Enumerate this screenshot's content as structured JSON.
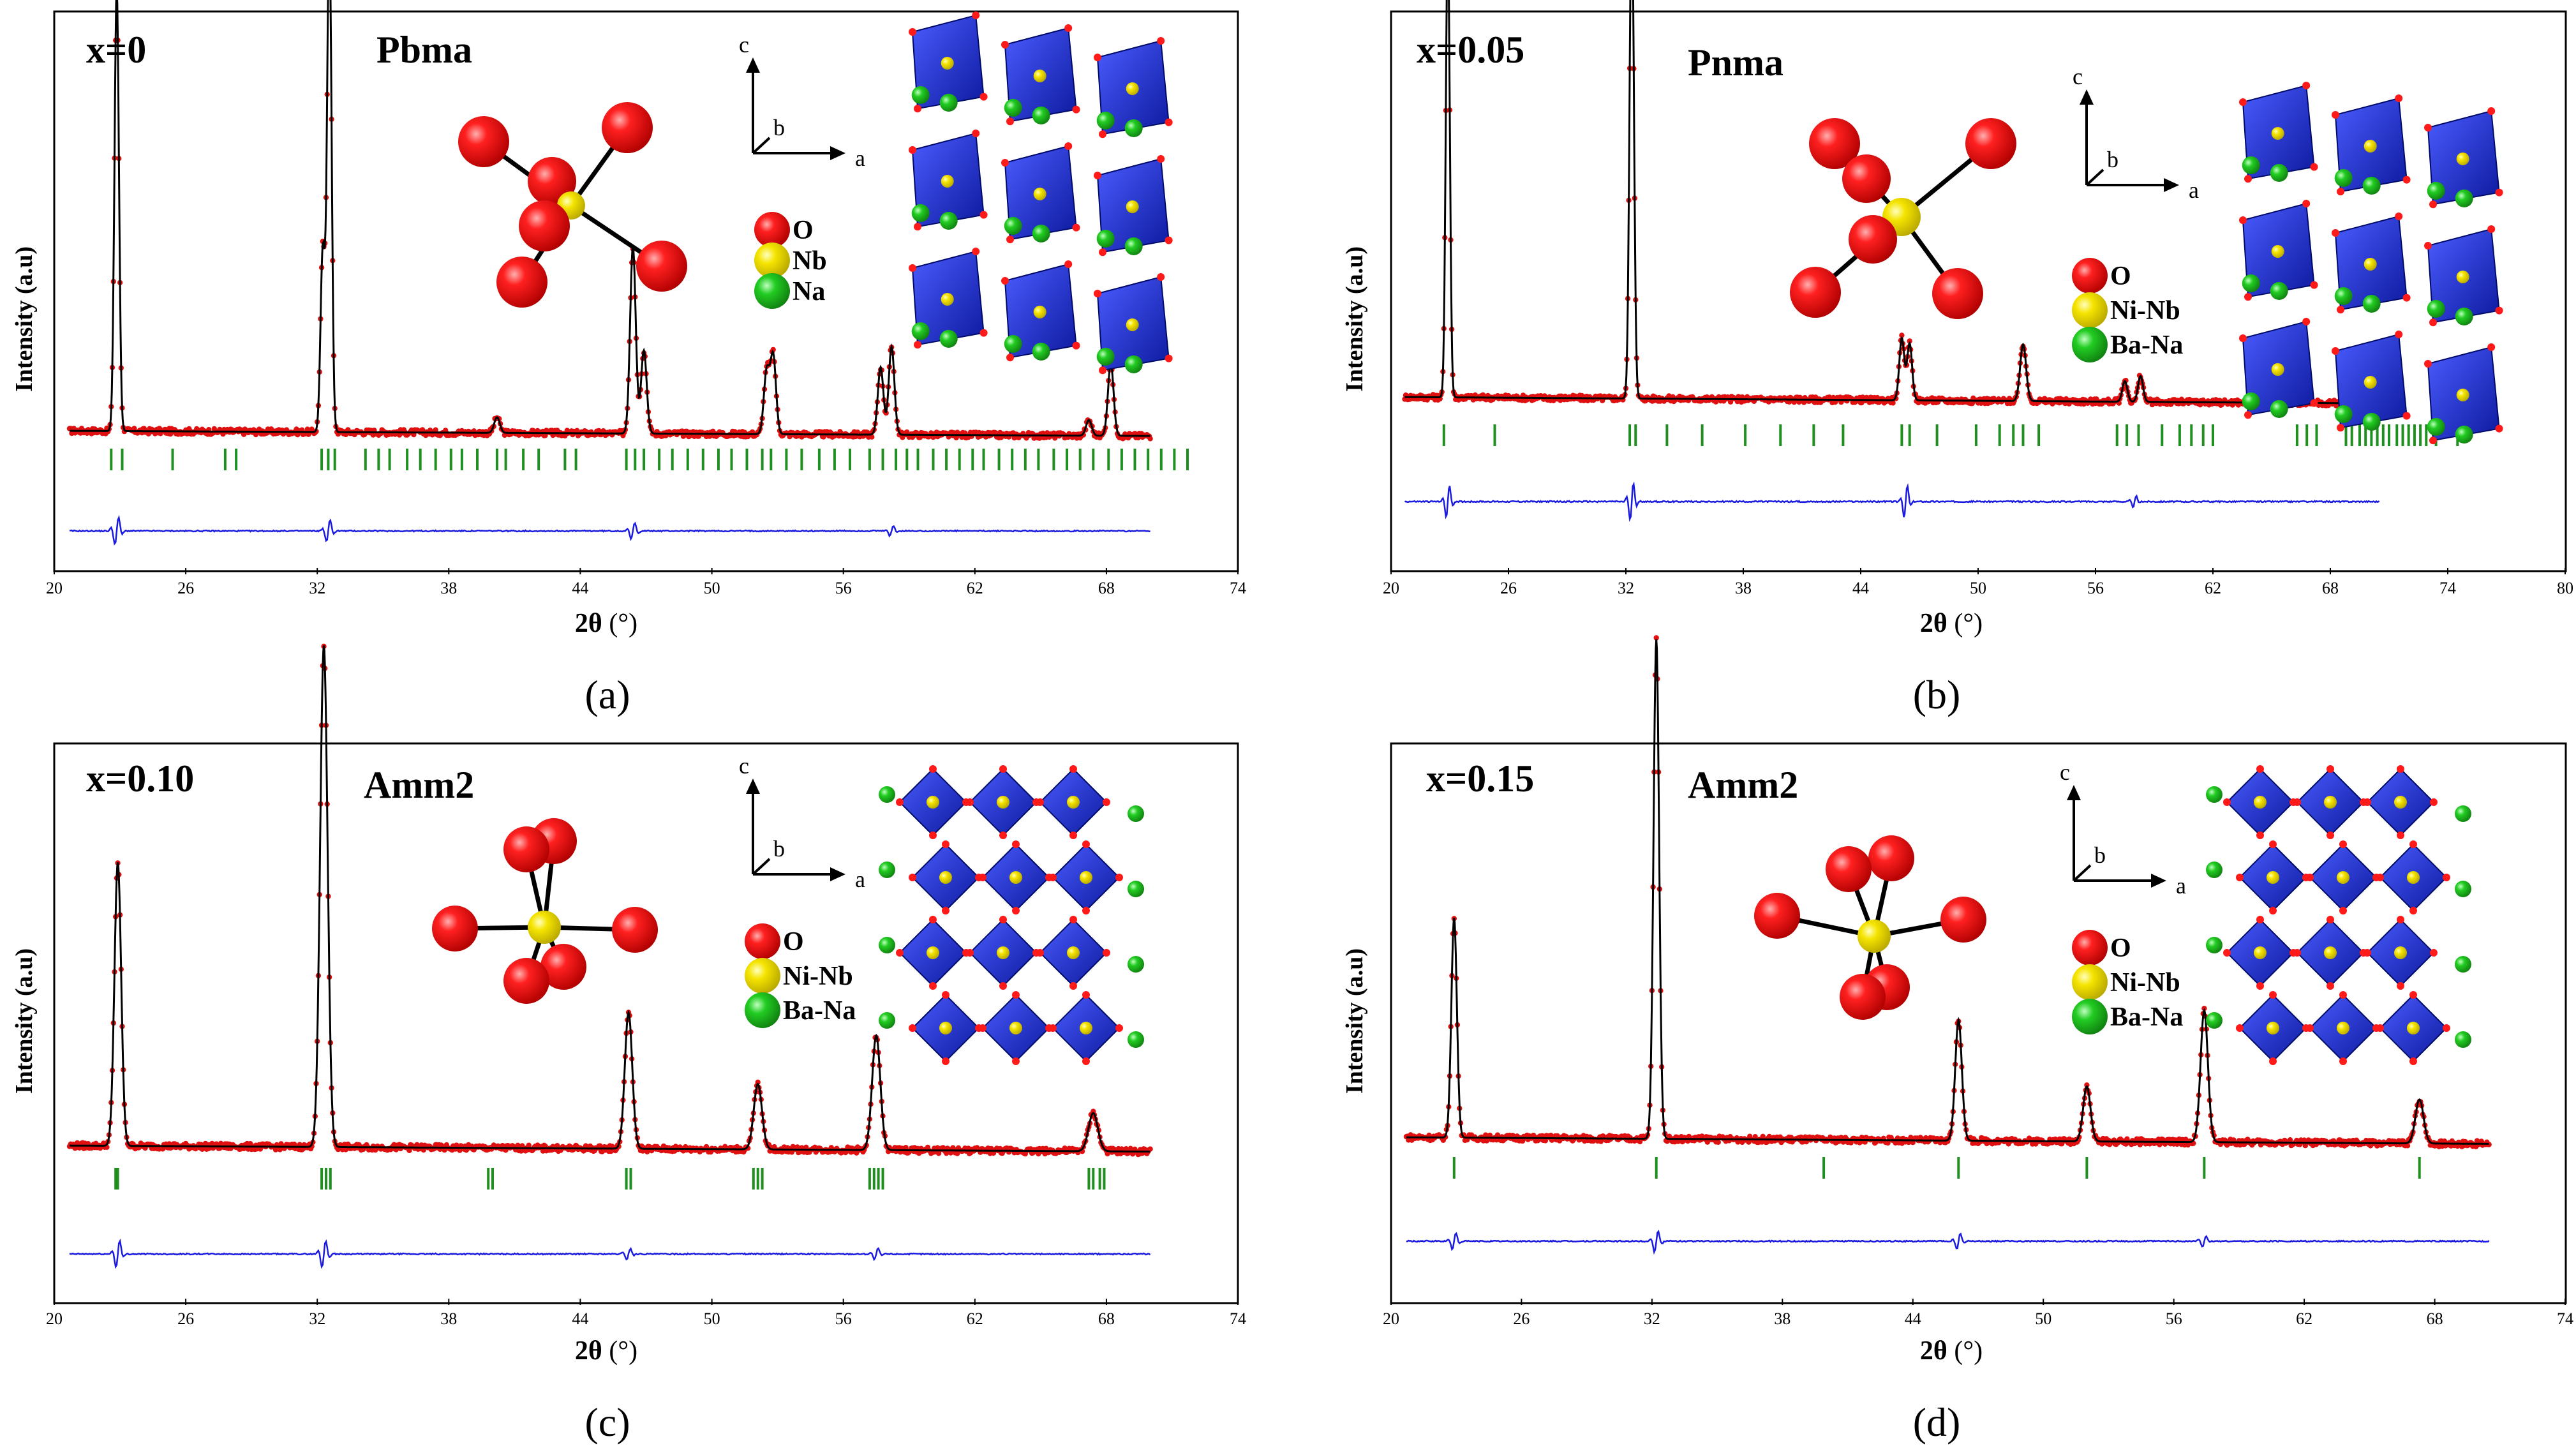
{
  "figure": {
    "colors": {
      "observed": "#e01010",
      "calculated": "#000000",
      "difference": "#1a1ae0",
      "bragg": "#1f8f1f",
      "oxygen": "#ff1a1a",
      "cation": "#f5e400",
      "site": "#22cc22",
      "octahedron": "#1a2bd6"
    },
    "legend_icons": [
      "oxygen-sphere-icon",
      "cation-sphere-icon",
      "a-site-sphere-icon"
    ]
  },
  "chart_data": [
    {
      "type": "line",
      "panel": "a",
      "caption": "(a)",
      "composition": "x=0",
      "space_group": "Pbma",
      "ylabel": "Intensity (a.u)",
      "xlabel_main": "2θ",
      "xlabel_unit": "(°)",
      "xlim": [
        20,
        74
      ],
      "ylim": [
        0,
        100
      ],
      "xticks": [
        "20",
        "26",
        "32",
        "38",
        "44",
        "50",
        "56",
        "62",
        "68",
        "74"
      ],
      "pattern_end": 70,
      "bragg_end": 72,
      "background": 25,
      "axes_labels": {
        "c": "c",
        "b": "b",
        "a": "a"
      },
      "legend": [
        "O",
        "Nb",
        "Na"
      ],
      "octahedron_style": "tilted",
      "series": [
        {
          "name": "Observed / Calculated",
          "peaks": [
            [
              22.85,
              85,
              0.12
            ],
            [
              32.25,
              35,
              0.12
            ],
            [
              32.55,
              97,
              0.12
            ],
            [
              40.2,
              3,
              0.15
            ],
            [
              46.4,
              36,
              0.15
            ],
            [
              46.9,
              16,
              0.15
            ],
            [
              52.5,
              12,
              0.15
            ],
            [
              52.8,
              15,
              0.15
            ],
            [
              57.7,
              13,
              0.15
            ],
            [
              58.2,
              17,
              0.15
            ],
            [
              67.2,
              3,
              0.15
            ],
            [
              68.2,
              14,
              0.15
            ]
          ]
        },
        {
          "name": "Difference",
          "peaks": [
            [
              22.85,
              2.5,
              0.15
            ],
            [
              32.5,
              2,
              0.15
            ],
            [
              46.4,
              1.5,
              0.15
            ],
            [
              58.2,
              1.0,
              0.15
            ]
          ]
        }
      ],
      "bragg_positions": [
        22.6,
        23.1,
        25.4,
        27.8,
        28.3,
        32.2,
        32.5,
        32.8,
        34.2,
        34.8,
        35.3,
        36.1,
        36.7,
        37.4,
        38.1,
        38.6,
        39.3,
        40.2,
        40.6,
        41.4,
        42.1,
        43.3,
        43.8,
        46.1,
        46.5,
        46.9,
        47.6,
        48.2,
        48.9,
        49.6,
        50.3,
        50.9,
        51.6,
        52.3,
        52.7,
        53.4,
        54.1,
        54.9,
        55.6,
        56.3,
        57.2,
        57.8,
        58.4,
        58.9,
        59.4,
        60.1,
        60.7,
        61.3,
        61.9,
        62.4,
        63.1,
        63.7,
        64.3,
        64.9,
        65.6,
        66.2,
        66.8,
        67.4,
        68.1,
        68.7,
        69.3,
        69.9,
        70.5,
        71.1,
        71.7
      ]
    },
    {
      "type": "line",
      "panel": "b",
      "caption": "(b)",
      "composition": "x=0.05",
      "space_group": "Pnma",
      "ylabel": "Intensity (a.u)",
      "xlabel_main": "2θ",
      "xlabel_unit": "(°)",
      "xlim": [
        20,
        80
      ],
      "ylim": [
        0,
        100
      ],
      "xticks": [
        "20",
        "26",
        "32",
        "38",
        "44",
        "50",
        "56",
        "62",
        "68",
        "74",
        "80"
      ],
      "pattern_end": 70.5,
      "bragg_end": 74.7,
      "background": 31,
      "axes_labels": {
        "c": "c",
        "b": "b",
        "a": "a"
      },
      "legend": [
        "O",
        "Ni-Nb",
        "Ba-Na"
      ],
      "octahedron_style": "tilted",
      "series": [
        {
          "name": "Observed / Calculated",
          "peaks": [
            [
              22.9,
              90,
              0.12
            ],
            [
              32.3,
              97,
              0.13
            ],
            [
              46.1,
              12,
              0.15
            ],
            [
              46.5,
              11,
              0.15
            ],
            [
              52.3,
              11,
              0.18
            ],
            [
              57.5,
              4,
              0.15
            ],
            [
              58.3,
              5,
              0.15
            ]
          ]
        },
        {
          "name": "Difference",
          "peaks": [
            [
              22.9,
              3,
              0.15
            ],
            [
              32.3,
              3.5,
              0.15
            ],
            [
              46.3,
              3,
              0.15
            ],
            [
              58.0,
              1.0,
              0.15
            ]
          ]
        }
      ],
      "bragg_positions": [
        22.7,
        25.3,
        32.2,
        32.5,
        34.1,
        35.9,
        38.1,
        39.9,
        41.6,
        43.1,
        46.1,
        46.5,
        47.9,
        49.9,
        51.1,
        51.8,
        52.3,
        53.1,
        57.1,
        57.6,
        58.2,
        59.4,
        60.3,
        60.9,
        61.5,
        62.0,
        66.3,
        66.8,
        67.3,
        68.8,
        69.1,
        69.5,
        69.8,
        70.1,
        70.4,
        70.7,
        71.0,
        71.4,
        71.7,
        72.0,
        72.3,
        72.6,
        72.9,
        73.4,
        74.5
      ]
    },
    {
      "type": "line",
      "panel": "c",
      "caption": "(c)",
      "composition": "x=0.10",
      "space_group": "Amm2",
      "ylabel": "Intensity (a.u)",
      "xlabel_main": "2θ",
      "xlabel_unit": "(°)",
      "xlim": [
        20,
        74
      ],
      "ylim": [
        0,
        100
      ],
      "xticks": [
        "20",
        "26",
        "32",
        "38",
        "44",
        "50",
        "56",
        "62",
        "68",
        "74"
      ],
      "pattern_end": 70,
      "bragg_end": 70,
      "background": 28,
      "axes_labels": {
        "c": "c",
        "b": "b",
        "a": "a"
      },
      "legend": [
        "O",
        "Ni-Nb",
        "Ba-Na"
      ],
      "octahedron_style": "regular",
      "series": [
        {
          "name": "Observed / Calculated",
          "peaks": [
            [
              22.9,
              52,
              0.18
            ],
            [
              32.3,
              92,
              0.2
            ],
            [
              46.2,
              25,
              0.2
            ],
            [
              52.1,
              12,
              0.22
            ],
            [
              57.5,
              21,
              0.22
            ],
            [
              67.4,
              7,
              0.25
            ]
          ]
        },
        {
          "name": "Difference",
          "peaks": [
            [
              22.9,
              2.5,
              0.15
            ],
            [
              32.3,
              2.5,
              0.15
            ],
            [
              46.2,
              1.0,
              0.15
            ],
            [
              57.5,
              1.0,
              0.15
            ]
          ]
        }
      ],
      "bragg_positions": [
        22.8,
        22.9,
        32.2,
        32.4,
        32.6,
        39.8,
        40.0,
        46.1,
        46.3,
        51.9,
        52.1,
        52.3,
        57.2,
        57.4,
        57.6,
        57.8,
        67.2,
        67.4,
        67.7,
        67.9
      ]
    },
    {
      "type": "line",
      "panel": "d",
      "caption": "(d)",
      "composition": "x=0.15",
      "space_group": "Amm2",
      "ylabel": "Intensity (a.u)",
      "xlabel_main": "2θ",
      "xlabel_unit": "(°)",
      "xlim": [
        20,
        74
      ],
      "ylim": [
        0,
        100
      ],
      "xticks": [
        "20",
        "26",
        "32",
        "38",
        "44",
        "50",
        "56",
        "62",
        "68",
        "74"
      ],
      "pattern_end": 70.5,
      "bragg_end": 70.5,
      "background": 30,
      "axes_labels": {
        "c": "c",
        "b": "b",
        "a": "a"
      },
      "legend": [
        "O",
        "Ni-Nb",
        "Ba-Na"
      ],
      "octahedron_style": "regular",
      "series": [
        {
          "name": "Observed / Calculated",
          "peaks": [
            [
              22.9,
              40,
              0.15
            ],
            [
              32.2,
              91,
              0.15
            ],
            [
              46.1,
              22,
              0.18
            ],
            [
              52.0,
              10,
              0.2
            ],
            [
              57.4,
              24,
              0.2
            ],
            [
              67.3,
              8,
              0.22
            ]
          ]
        },
        {
          "name": "Difference",
          "peaks": [
            [
              22.9,
              1.5,
              0.15
            ],
            [
              32.2,
              2.0,
              0.15
            ],
            [
              46.1,
              1.5,
              0.15
            ],
            [
              57.4,
              1.0,
              0.15
            ]
          ]
        }
      ],
      "bragg_positions": [
        22.9,
        32.2,
        39.9,
        46.1,
        52.0,
        57.4,
        67.3
      ]
    }
  ]
}
